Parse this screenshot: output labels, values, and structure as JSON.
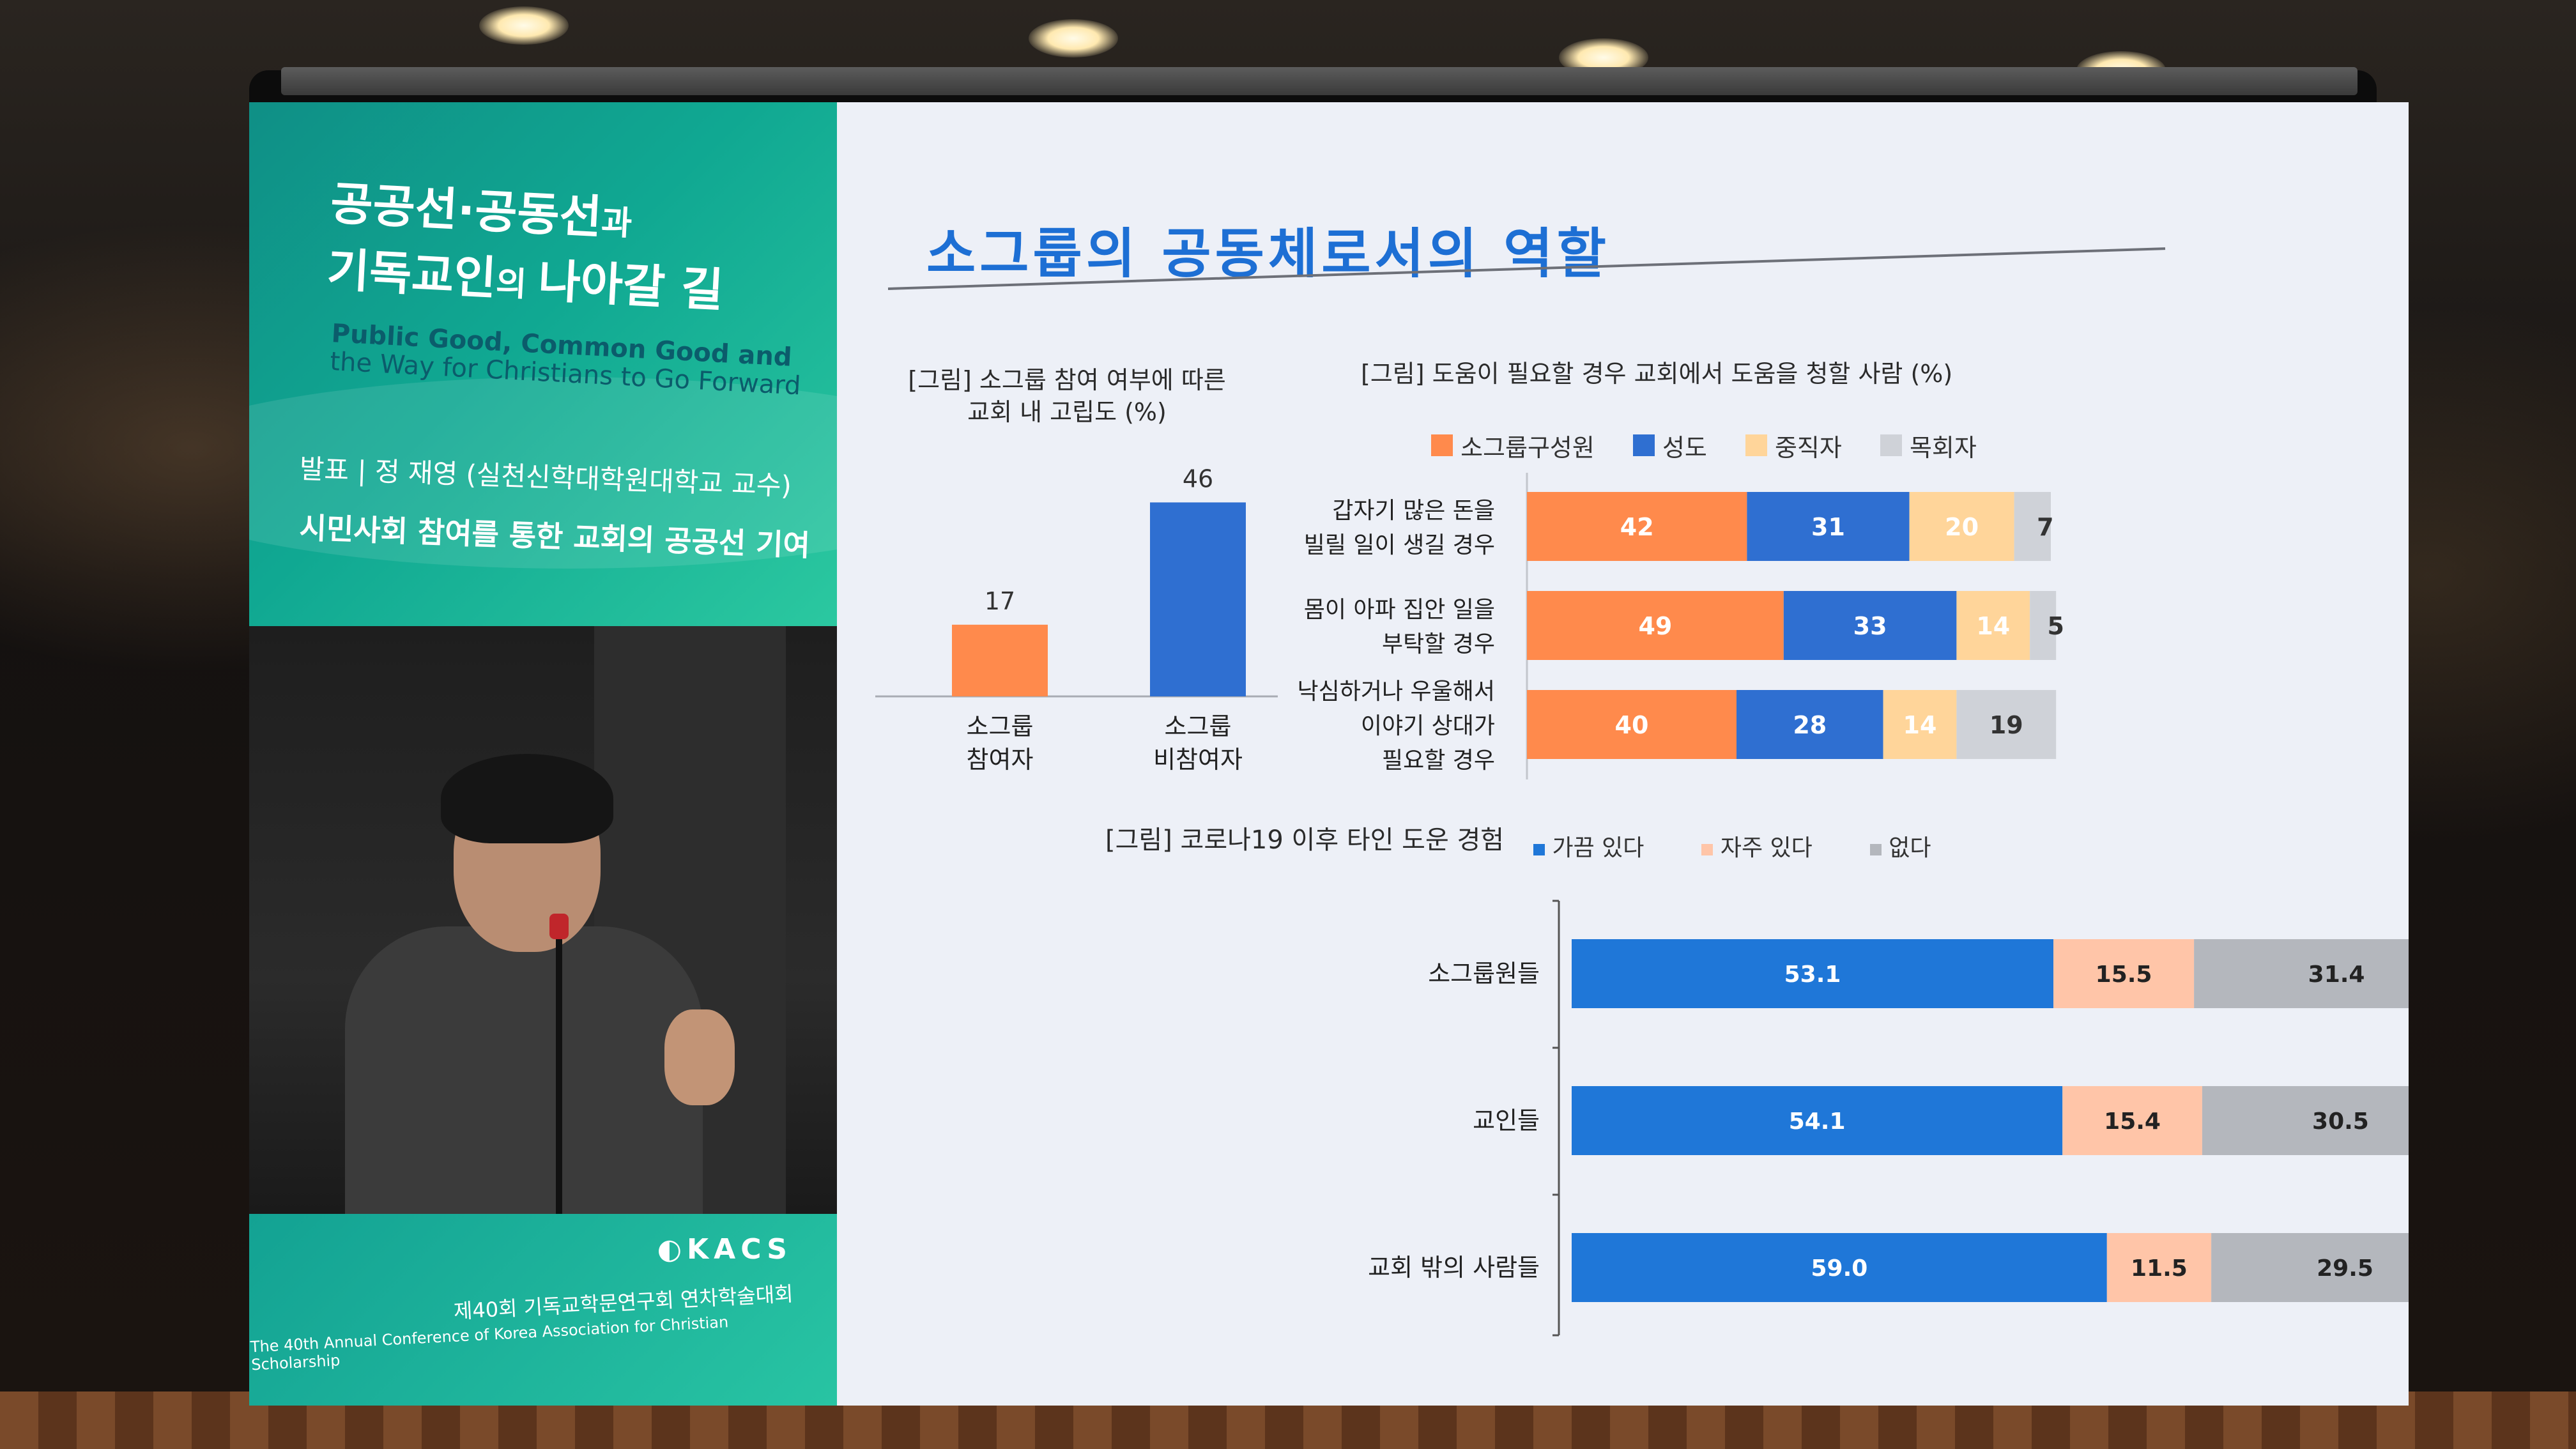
{
  "slide": {
    "title": "소그룹의 공동체로서의 역할",
    "left_panel": {
      "title_line1_a": "공공선·공동선",
      "title_line1_b": "과",
      "title_line2_a": "기독교인",
      "title_line2_b": "의 ",
      "title_line2_c": "나아갈 길",
      "en_line1": "Public Good, Common Good and",
      "en_line2": "the Way for Christians to Go Forward",
      "presenter": "발표 | 정 재영 (실천신학대학원대학교 교수)",
      "session_title": "시민사회 참여를 통한 교회의 공공선 기여",
      "org_logo": "KACS",
      "conference_ko": "제40회 기독교학문연구회 연차학술대회",
      "conference_en": "The 40th Annual Conference of Korea Association for Christian Scholarship"
    }
  },
  "chart_data": [
    {
      "type": "bar",
      "title_line1": "[그림] 소그룹 참여 여부에 따른",
      "title_line2": "교회 내 고립도 (%)",
      "categories": [
        [
          "소그룹",
          "참여자"
        ],
        [
          "소그룹",
          "비참여자"
        ]
      ],
      "values": [
        17,
        46
      ],
      "colors": [
        "#ff8a4c",
        "#2f6fd1"
      ],
      "ylim": [
        0,
        50
      ]
    },
    {
      "type": "bar",
      "orientation": "horizontal-stacked",
      "title": "[그림] 도움이 필요할 경우 교회에서 도움을 청할 사람 (%)",
      "categories": [
        [
          "갑자기 많은 돈을",
          "빌릴 일이 생길 경우"
        ],
        [
          "몸이 아파 집안 일을",
          "부탁할 경우"
        ],
        [
          "낙심하거나 우울해서",
          "이야기 상대가",
          "필요할 경우"
        ]
      ],
      "series": [
        {
          "name": "소그룹구성원",
          "color": "#ff8a4c",
          "values": [
            42,
            49,
            40
          ]
        },
        {
          "name": "성도",
          "color": "#2f6fd1",
          "values": [
            31,
            33,
            28
          ]
        },
        {
          "name": "중직자",
          "color": "#ffd59a",
          "values": [
            20,
            14,
            14
          ]
        },
        {
          "name": "목회자",
          "color": "#cfd2d8",
          "values": [
            7,
            5,
            19
          ]
        }
      ]
    },
    {
      "type": "bar",
      "orientation": "horizontal-stacked",
      "title": "[그림] 코로나19 이후 타인 도운 경험",
      "categories": [
        "소그룹원들",
        "교인들",
        "교회 밖의 사람들"
      ],
      "series": [
        {
          "name": "가끔 있다",
          "color": "#1f77d8",
          "values": [
            53.1,
            54.1,
            59.0
          ]
        },
        {
          "name": "자주 있다",
          "color": "#ffc5a8",
          "values": [
            15.5,
            15.4,
            11.5
          ]
        },
        {
          "name": "없다",
          "color": "#b4b7bd",
          "values": [
            31.4,
            30.5,
            29.5
          ]
        }
      ]
    }
  ]
}
